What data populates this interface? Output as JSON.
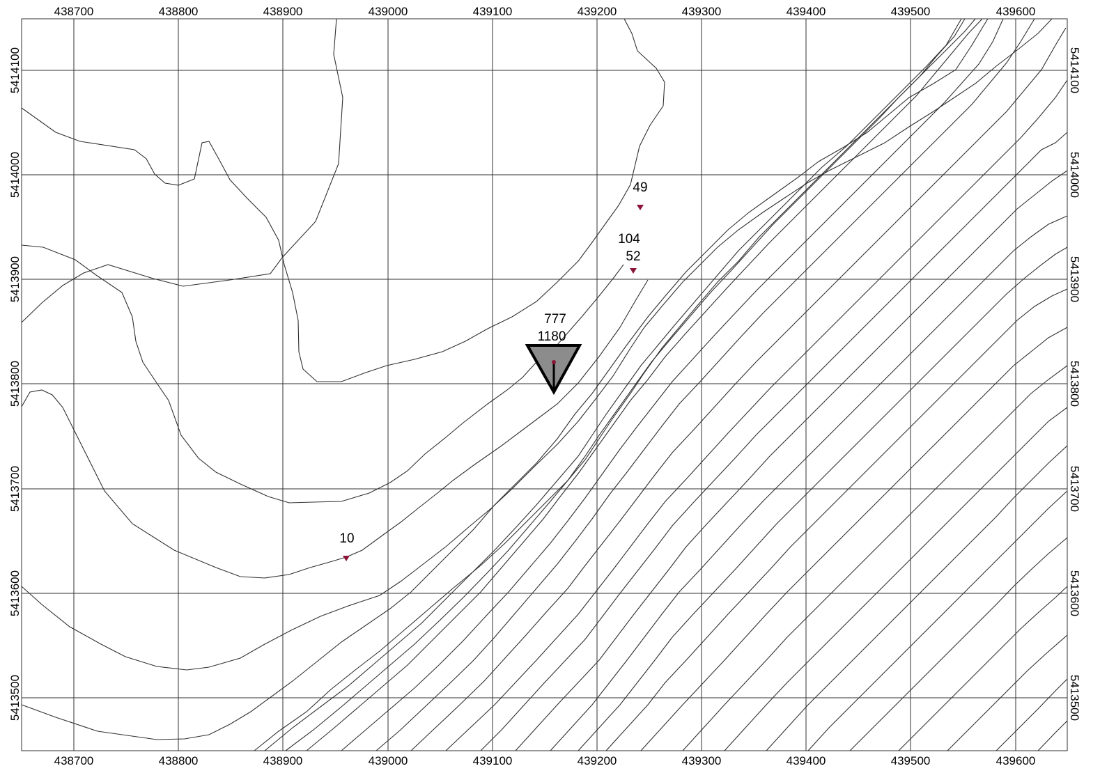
{
  "map": {
    "x_ticks": [
      "438700",
      "438800",
      "438900",
      "439000",
      "439100",
      "439200",
      "439300",
      "439400",
      "439500",
      "439600"
    ],
    "y_ticks": [
      "5414100",
      "5414000",
      "5413900",
      "5413800",
      "5413700",
      "5413600",
      "5413500"
    ],
    "colors": {
      "marker": "#8a1538",
      "main_marker_fill": "#8c8c8c",
      "lines": "#303030"
    },
    "main_marker": {
      "icon": "triangle-down-icon",
      "easting": 439159,
      "northing": 5413822,
      "labels": [
        "777",
        "1180"
      ]
    },
    "wells": [
      {
        "icon": "small-triangle-down-icon",
        "easting": 438961,
        "northing": 5413633,
        "labels": [
          "10"
        ]
      },
      {
        "icon": "small-triangle-down-icon",
        "easting": 439242,
        "northing": 5413968,
        "labels": [
          "49"
        ]
      },
      {
        "icon": "small-triangle-down-icon",
        "easting": 439235,
        "northing": 5413908,
        "labels": [
          "104",
          "52"
        ]
      }
    ]
  }
}
